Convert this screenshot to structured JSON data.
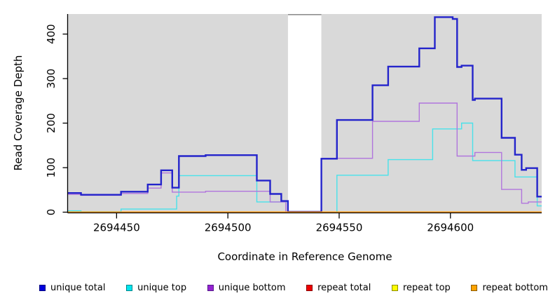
{
  "chart_data": {
    "type": "line",
    "subtype": "step-coverage",
    "title": "",
    "xlabel": "Coordinate in Reference Genome",
    "ylabel": "Read Coverage Depth",
    "xlim": [
      2694428,
      2694641
    ],
    "ylim": [
      0,
      445
    ],
    "x_ticks": [
      2694450,
      2694500,
      2694550,
      2694600
    ],
    "x_tick_labels": [
      "2694450",
      "2694500",
      "2694550",
      "2694600"
    ],
    "y_ticks": [
      0,
      100,
      200,
      300,
      400
    ],
    "y_tick_labels": [
      "0",
      "100",
      "200",
      "300",
      "400"
    ],
    "grid": false,
    "plot_bg_color": "#d9d9d9",
    "masked_region": {
      "x_start": 2694527,
      "x_end": 2694542,
      "color": "#ffffff",
      "top_border_color": "#8f8f8f"
    },
    "legend_position": "bottom",
    "draw_order": [
      3,
      4,
      1,
      2,
      0,
      5
    ],
    "series": [
      {
        "name": "unique total",
        "line_color": "#2424cb",
        "line_width": 2.4,
        "legend_fill": "#0000dd",
        "legend_border": "#000080",
        "points": [
          [
            2694428,
            43
          ],
          [
            2694434,
            39
          ],
          [
            2694452,
            46
          ],
          [
            2694464,
            62
          ],
          [
            2694470,
            94
          ],
          [
            2694475,
            55
          ],
          [
            2694478,
            126
          ],
          [
            2694490,
            128
          ],
          [
            2694513,
            71
          ],
          [
            2694519,
            41
          ],
          [
            2694524,
            25
          ],
          [
            2694527,
            1
          ],
          [
            2694542,
            120
          ],
          [
            2694549,
            207
          ],
          [
            2694565,
            285
          ],
          [
            2694572,
            327
          ],
          [
            2694586,
            368
          ],
          [
            2694593,
            438
          ],
          [
            2694601,
            434
          ],
          [
            2694603,
            326
          ],
          [
            2694605,
            329
          ],
          [
            2694610,
            252
          ],
          [
            2694611,
            255
          ],
          [
            2694623,
            167
          ],
          [
            2694629,
            129
          ],
          [
            2694632,
            95
          ],
          [
            2694634,
            99
          ],
          [
            2694639,
            35
          ]
        ]
      },
      {
        "name": "unique top",
        "line_color": "#48e2ea",
        "line_width": 1.4,
        "legend_fill": "#00e5ee",
        "legend_border": "#00868b",
        "points": [
          [
            2694428,
            3
          ],
          [
            2694434,
            1
          ],
          [
            2694452,
            7
          ],
          [
            2694477,
            36
          ],
          [
            2694478,
            82
          ],
          [
            2694513,
            23
          ],
          [
            2694527,
            0
          ],
          [
            2694549,
            83
          ],
          [
            2694572,
            118
          ],
          [
            2694592,
            187
          ],
          [
            2694605,
            200
          ],
          [
            2694610,
            116
          ],
          [
            2694629,
            79
          ],
          [
            2694639,
            14
          ]
        ]
      },
      {
        "name": "unique bottom",
        "line_color": "#b175dd",
        "line_width": 1.4,
        "legend_fill": "#9623d2",
        "legend_border": "#551a8b",
        "points": [
          [
            2694428,
            40
          ],
          [
            2694434,
            38
          ],
          [
            2694452,
            42
          ],
          [
            2694464,
            54
          ],
          [
            2694470,
            88
          ],
          [
            2694475,
            45
          ],
          [
            2694490,
            47
          ],
          [
            2694519,
            23
          ],
          [
            2694526,
            0
          ],
          [
            2694542,
            121
          ],
          [
            2694565,
            204
          ],
          [
            2694586,
            245
          ],
          [
            2694603,
            126
          ],
          [
            2694611,
            134
          ],
          [
            2694623,
            51
          ],
          [
            2694632,
            20
          ],
          [
            2694635,
            23
          ]
        ]
      },
      {
        "name": "repeat total",
        "line_color": "#dd0000",
        "line_width": 1.2,
        "legend_fill": "#ee0000",
        "legend_border": "#8b0000",
        "points": [
          [
            2694428,
            0
          ]
        ]
      },
      {
        "name": "repeat top",
        "line_color": "#ffff00",
        "line_width": 1.2,
        "legend_fill": "#ffff00",
        "legend_border": "#8b8b00",
        "points": [
          [
            2694428,
            0
          ]
        ]
      },
      {
        "name": "repeat bottom",
        "line_color": "#ff9800",
        "line_width": 2.0,
        "legend_fill": "#ffa300",
        "legend_border": "#8b5a00",
        "points": [
          [
            2694428,
            0
          ]
        ]
      }
    ]
  }
}
